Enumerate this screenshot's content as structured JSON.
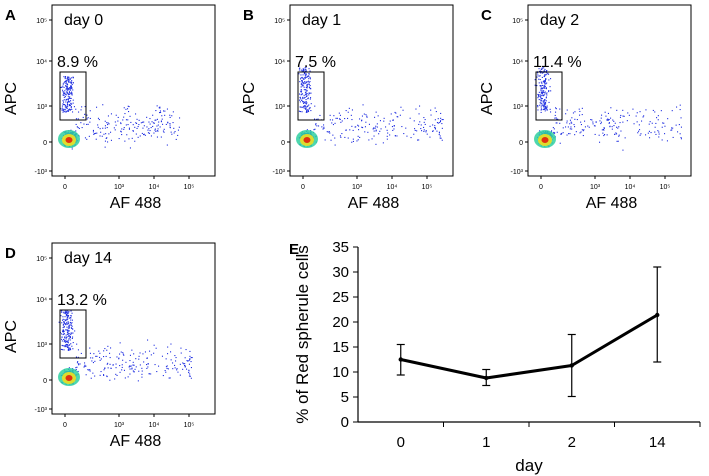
{
  "flow_panels": [
    {
      "letter": "A",
      "day_label": "day 0",
      "gate_pct": "8.9 %",
      "xlabel": "AF 488",
      "ylabel": "APC"
    },
    {
      "letter": "B",
      "day_label": "day 1",
      "gate_pct": "7.5 %",
      "xlabel": "AF 488",
      "ylabel": "APC"
    },
    {
      "letter": "C",
      "day_label": "day 2",
      "gate_pct": "11.4 %",
      "xlabel": "AF 488",
      "ylabel": "APC"
    },
    {
      "letter": "D",
      "day_label": "day 14",
      "gate_pct": "13.2 %",
      "xlabel": "AF 488",
      "ylabel": "APC"
    }
  ],
  "flow_ticks": {
    "y": [
      "10⁵",
      "10⁴",
      "10³",
      "0",
      "-10³"
    ],
    "x": [
      "0",
      "10³",
      "10⁴",
      "10⁵"
    ]
  },
  "colors": {
    "dots": "#1f2ee0",
    "density_mid": "#2fd0a0",
    "density_high": "#f0e020",
    "density_peak": "#e03010",
    "line": "#000000"
  },
  "chart_data": {
    "panel": "E",
    "type": "line",
    "categories": [
      "0",
      "1",
      "2",
      "14"
    ],
    "series": [
      {
        "values": [
          12.5,
          8.8,
          11.3,
          21.4
        ],
        "err_low": [
          9.4,
          7.3,
          5.1,
          12.0
        ],
        "err_high": [
          15.5,
          10.5,
          17.5,
          31.0
        ]
      }
    ],
    "xlabel": "day",
    "ylabel": "% of Red spherule cells",
    "ylim": [
      0,
      35
    ],
    "yticks": [
      0,
      5,
      10,
      15,
      20,
      25,
      30,
      35
    ],
    "grid": false
  }
}
